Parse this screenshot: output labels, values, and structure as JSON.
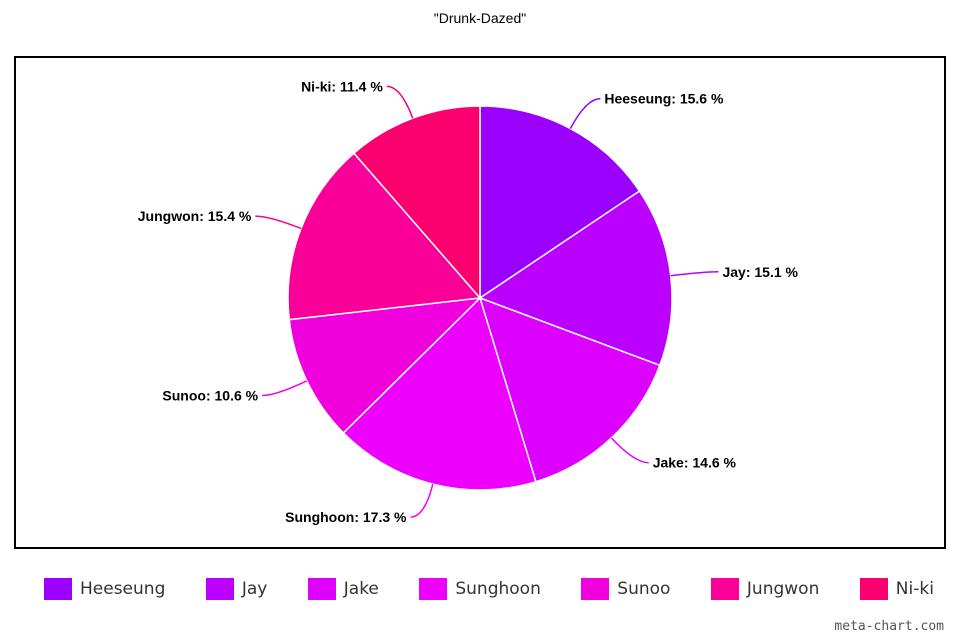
{
  "chart_data": {
    "type": "pie",
    "title": "\"Drunk-Dazed\"",
    "slices": [
      {
        "name": "Heeseung",
        "value": 15.6,
        "label": "Heeseung: 15.6 %",
        "color": "#9b00ff"
      },
      {
        "name": "Jay",
        "value": 15.1,
        "label": "Jay: 15.1 %",
        "color": "#bb00ff"
      },
      {
        "name": "Jake",
        "value": 14.6,
        "label": "Jake: 14.6 %",
        "color": "#dd00ff"
      },
      {
        "name": "Sunghoon",
        "value": 17.3,
        "label": "Sunghoon: 17.3 %",
        "color": "#ee00ff"
      },
      {
        "name": "Sunoo",
        "value": 10.6,
        "label": "Sunoo: 10.6 %",
        "color": "#f000dd"
      },
      {
        "name": "Jungwon",
        "value": 15.4,
        "label": "Jungwon: 15.4 %",
        "color": "#fa0099"
      },
      {
        "name": "Ni-ki",
        "value": 11.4,
        "label": "Ni-ki: 11.4 %",
        "color": "#fc0070"
      }
    ],
    "legend_position": "bottom"
  },
  "watermark": "meta-chart.com"
}
